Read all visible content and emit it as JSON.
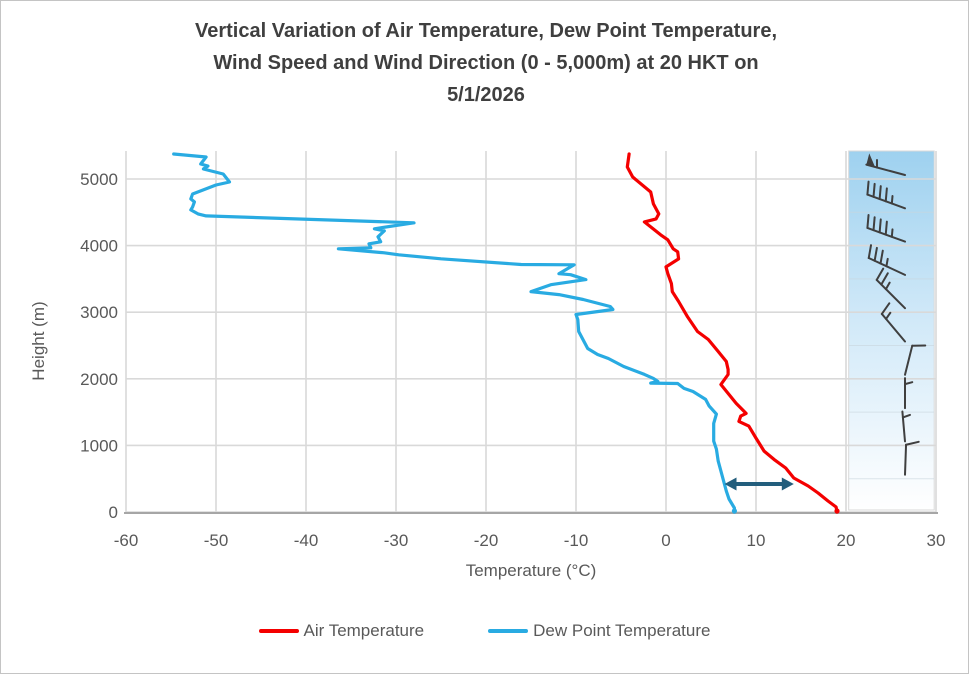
{
  "chart_data": {
    "type": "line",
    "title": "Vertical Variation of Air Temperature, Dew Point Temperature, Wind Speed and Wind Direction (0 - 5,000m) at 20 HKT on 5/1/2026",
    "title_lines": [
      "Vertical Variation of Air Temperature, Dew Point Temperature,",
      "Wind Speed and Wind Direction (0 - 5,000m) at 20 HKT on",
      "5/1/2026"
    ],
    "xlabel": "Temperature (°C)",
    "ylabel": "Height (m)",
    "x_ticks": [
      -60,
      -50,
      -40,
      -30,
      -20,
      -10,
      0,
      10,
      20,
      30
    ],
    "y_ticks": [
      0,
      1000,
      2000,
      3000,
      4000,
      5000
    ],
    "xlim": [
      -60,
      30
    ],
    "ylim": [
      0,
      5420
    ],
    "grid": true,
    "legend_position": "bottom",
    "colors": {
      "grid": "#d9d9d9",
      "axis": "#a6a6a6",
      "text": "#595959",
      "title": "#3f3f3f",
      "barb": "#3f3f3f",
      "panel_top": "#9ed1ef",
      "panel_mid": "#cfe8f8",
      "panel_bottom": "#ffffff",
      "arrow": "#235e7d"
    },
    "series": [
      {
        "name": "Air Temperature",
        "color": "#f40000",
        "points_h_t": [
          [
            0,
            19.0
          ],
          [
            75,
            18.9
          ],
          [
            165,
            18.0
          ],
          [
            285,
            16.9
          ],
          [
            390,
            15.8
          ],
          [
            510,
            14.2
          ],
          [
            660,
            13.3
          ],
          [
            790,
            12.0
          ],
          [
            915,
            10.9
          ],
          [
            1110,
            10.0
          ],
          [
            1290,
            9.2
          ],
          [
            1360,
            8.1
          ],
          [
            1440,
            8.3
          ],
          [
            1480,
            8.9
          ],
          [
            1630,
            7.8
          ],
          [
            1765,
            7.0
          ],
          [
            1915,
            6.1
          ],
          [
            2065,
            6.9
          ],
          [
            2140,
            6.9
          ],
          [
            2260,
            6.7
          ],
          [
            2410,
            5.8
          ],
          [
            2590,
            4.7
          ],
          [
            2710,
            3.5
          ],
          [
            2930,
            2.4
          ],
          [
            3160,
            1.4
          ],
          [
            3310,
            0.7
          ],
          [
            3430,
            0.6
          ],
          [
            3580,
            0.2
          ],
          [
            3680,
            0.0
          ],
          [
            3800,
            1.4
          ],
          [
            3907,
            1.3
          ],
          [
            3952,
            0.8
          ],
          [
            4087,
            0.2
          ],
          [
            4162,
            -0.6
          ],
          [
            4356,
            -2.4
          ],
          [
            4401,
            -1.1
          ],
          [
            4476,
            -0.8
          ],
          [
            4626,
            -1.4
          ],
          [
            4805,
            -1.7
          ],
          [
            5030,
            -3.7
          ],
          [
            5180,
            -4.3
          ],
          [
            5375,
            -4.1
          ]
        ]
      },
      {
        "name": "Dew Point Temperature",
        "color": "#29abe2",
        "points_h_t": [
          [
            0,
            7.6
          ],
          [
            60,
            7.6
          ],
          [
            195,
            7.0
          ],
          [
            315,
            6.7
          ],
          [
            465,
            6.4
          ],
          [
            615,
            6.1
          ],
          [
            765,
            5.8
          ],
          [
            945,
            5.6
          ],
          [
            1065,
            5.3
          ],
          [
            1330,
            5.3
          ],
          [
            1470,
            5.6
          ],
          [
            1590,
            4.8
          ],
          [
            1690,
            4.4
          ],
          [
            1810,
            3.0
          ],
          [
            1856,
            2.0
          ],
          [
            1930,
            1.3
          ],
          [
            1935,
            -1.7
          ],
          [
            1961,
            -0.9
          ],
          [
            2006,
            -1.4
          ],
          [
            2066,
            -2.4
          ],
          [
            2185,
            -4.7
          ],
          [
            2305,
            -6.4
          ],
          [
            2365,
            -7.6
          ],
          [
            2455,
            -8.7
          ],
          [
            2710,
            -9.7
          ],
          [
            2890,
            -9.8
          ],
          [
            2965,
            -10.0
          ],
          [
            3040,
            -5.9
          ],
          [
            3085,
            -6.2
          ],
          [
            3190,
            -9.2
          ],
          [
            3265,
            -11.9
          ],
          [
            3310,
            -15.0
          ],
          [
            3413,
            -12.8
          ],
          [
            3490,
            -8.9
          ],
          [
            3563,
            -10.6
          ],
          [
            3578,
            -11.9
          ],
          [
            3712,
            -10.2
          ],
          [
            3716,
            -16.1
          ],
          [
            3802,
            -25.0
          ],
          [
            3862,
            -29.7
          ],
          [
            3892,
            -31.3
          ],
          [
            3952,
            -36.4
          ],
          [
            3967,
            -32.8
          ],
          [
            4027,
            -33.0
          ],
          [
            4057,
            -31.7
          ],
          [
            4132,
            -32.0
          ],
          [
            4222,
            -31.3
          ],
          [
            4252,
            -32.4
          ],
          [
            4342,
            -28.0
          ],
          [
            4446,
            -51.1
          ],
          [
            4476,
            -52.0
          ],
          [
            4536,
            -52.8
          ],
          [
            4581,
            -52.6
          ],
          [
            4656,
            -52.4
          ],
          [
            4701,
            -52.8
          ],
          [
            4775,
            -52.6
          ],
          [
            4910,
            -50.0
          ],
          [
            4955,
            -48.5
          ],
          [
            5075,
            -49.2
          ],
          [
            5150,
            -51.4
          ],
          [
            5195,
            -50.9
          ],
          [
            5225,
            -51.7
          ],
          [
            5330,
            -51.1
          ],
          [
            5375,
            -54.7
          ]
        ]
      }
    ],
    "wind_barbs": {
      "panel_x_range_temp": [
        20.3,
        29.8
      ],
      "levels": [
        {
          "height_m": 5000,
          "speed_kt": 55,
          "dir_deg": 285
        },
        {
          "height_m": 4500,
          "speed_kt": 45,
          "dir_deg": 290
        },
        {
          "height_m": 4000,
          "speed_kt": 45,
          "dir_deg": 290
        },
        {
          "height_m": 3500,
          "speed_kt": 35,
          "dir_deg": 295
        },
        {
          "height_m": 3000,
          "speed_kt": 25,
          "dir_deg": 315
        },
        {
          "height_m": 2500,
          "speed_kt": 15,
          "dir_deg": 320
        },
        {
          "height_m": 2000,
          "speed_kt": 10,
          "dir_deg": 14
        },
        {
          "height_m": 1500,
          "speed_kt": 5,
          "dir_deg": 0
        },
        {
          "height_m": 1000,
          "speed_kt": 5,
          "dir_deg": 355
        },
        {
          "height_m": 500,
          "speed_kt": 10,
          "dir_deg": 2
        }
      ]
    },
    "annotation_arrow": {
      "height_m": 420,
      "t_from": 6.5,
      "t_to": 14.2
    }
  }
}
